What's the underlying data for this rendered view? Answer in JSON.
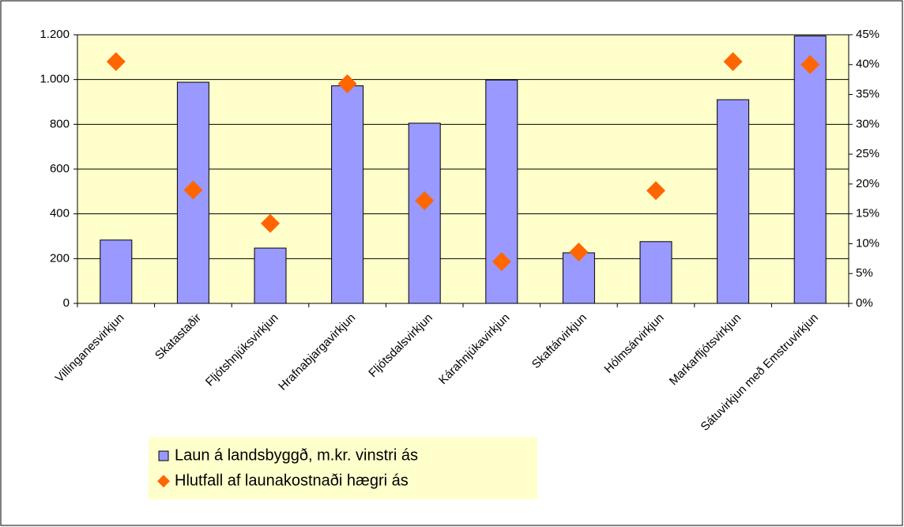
{
  "chart_data": {
    "type": "bar",
    "categories": [
      "Villinganesvirkjun",
      "Skatastaðir",
      "Fljótshnjúksvirkjun",
      "Hrafnabjargavirkjun",
      "Fljótsdalsvirkjun",
      "Kárahnjúkavirkjun",
      "Skaftárvirkjun",
      "Hólmsárvirkjun",
      "Markarfljótsvirkjun",
      "Sátuvirkjun með Emstruvirkjun"
    ],
    "series": [
      {
        "name": "Laun á landsbyggð, m.kr. vinstri ás",
        "color": "#9999ff",
        "type": "bar",
        "values": [
          283,
          988,
          247,
          972,
          805,
          998,
          226,
          276,
          910,
          1195
        ]
      },
      {
        "name": "Hlutfall af launakostnaði hægri ás",
        "color": "#ff6600",
        "type": "diamond",
        "axis": "y2",
        "values": [
          40.5,
          19,
          13.4,
          36.8,
          17.2,
          7,
          8.6,
          18.9,
          40.5,
          40
        ]
      }
    ],
    "ylim": [
      0,
      1200
    ],
    "yticks": [
      0,
      200,
      400,
      600,
      800,
      {
        "value": 1000,
        "label": "1.000"
      },
      {
        "value": 1200,
        "label": "1.200"
      }
    ],
    "y2lim": [
      0,
      45
    ],
    "y2ticks": [
      {
        "value": 0,
        "label": "0%"
      },
      {
        "value": 5,
        "label": "5%"
      },
      {
        "value": 10,
        "label": "10%"
      },
      {
        "value": 15,
        "label": "15%"
      },
      {
        "value": 20,
        "label": "20%"
      },
      {
        "value": 25,
        "label": "25%"
      },
      {
        "value": 30,
        "label": "30%"
      },
      {
        "value": 35,
        "label": "35%"
      },
      {
        "value": 40,
        "label": "40%"
      },
      {
        "value": 45,
        "label": "45%"
      }
    ],
    "grid": true
  }
}
